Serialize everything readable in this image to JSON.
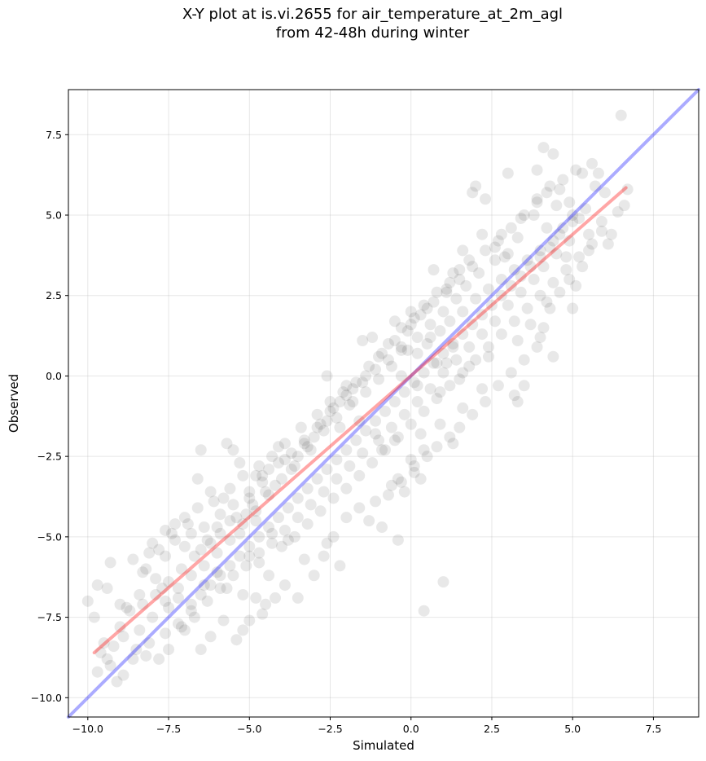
{
  "chart_data": {
    "type": "scatter",
    "title_lines": [
      "X-Y plot at is.vi.2655 for air_temperature_at_2m_agl",
      "from 42-48h during winter"
    ],
    "xlabel": "Simulated",
    "ylabel": "Observed",
    "xlim": [
      -10.6,
      8.9
    ],
    "ylim": [
      -10.6,
      8.9
    ],
    "xticks": [
      -10.0,
      -7.5,
      -5.0,
      -2.5,
      0.0,
      2.5,
      5.0,
      7.5
    ],
    "xtick_labels": [
      "−10.0",
      "−7.5",
      "−5.0",
      "−2.5",
      "0.0",
      "2.5",
      "5.0",
      "7.5"
    ],
    "yticks": [
      -10.0,
      -7.5,
      -5.0,
      -2.5,
      0.0,
      2.5,
      5.0,
      7.5
    ],
    "ytick_labels": [
      "−10.0",
      "−7.5",
      "−5.0",
      "−2.5",
      "0.0",
      "2.5",
      "5.0",
      "7.5"
    ],
    "grid": true,
    "point_color": "#000000",
    "point_alpha": 0.09,
    "identity_line": {
      "x": [
        -10.6,
        8.9
      ],
      "y": [
        -10.6,
        8.9
      ],
      "color": "#0000ff",
      "alpha": 0.33
    },
    "regression_line": {
      "x": [
        -9.8,
        6.65
      ],
      "y": [
        -8.6,
        5.85
      ],
      "color": "#ff0000",
      "alpha": 0.35
    },
    "points": [
      [
        6.5,
        8.1
      ],
      [
        6.6,
        5.3
      ],
      [
        6.7,
        5.8
      ],
      [
        6.1,
        4.1
      ],
      [
        5.9,
        4.5
      ],
      [
        5.8,
        6.3
      ],
      [
        5.6,
        6.6
      ],
      [
        5.3,
        6.3
      ],
      [
        4.1,
        7.1
      ],
      [
        4.4,
        6.9
      ],
      [
        3.9,
        6.4
      ],
      [
        3.0,
        6.3
      ],
      [
        2.0,
        5.9
      ],
      [
        1.9,
        5.7
      ],
      [
        2.3,
        5.5
      ],
      [
        5.1,
        6.4
      ],
      [
        4.2,
        4.6
      ],
      [
        4.5,
        5.3
      ],
      [
        3.8,
        5.0
      ],
      [
        3.3,
        4.3
      ],
      [
        2.9,
        3.7
      ],
      [
        4.8,
        3.7
      ],
      [
        5.1,
        2.8
      ],
      [
        5.0,
        2.1
      ],
      [
        4.2,
        2.3
      ],
      [
        3.7,
        1.6
      ],
      [
        3.3,
        1.1
      ],
      [
        3.5,
        -0.3
      ],
      [
        3.2,
        -0.6
      ],
      [
        3.3,
        -0.8
      ],
      [
        4.4,
        0.6
      ],
      [
        4.0,
        1.2
      ],
      [
        1.6,
        3.9
      ],
      [
        1.3,
        3.2
      ],
      [
        0.7,
        3.3
      ],
      [
        1.1,
        2.6
      ],
      [
        0.5,
        2.1
      ],
      [
        0.0,
        1.6
      ],
      [
        0.1,
        1.8
      ],
      [
        -0.5,
        1.7
      ],
      [
        -1.5,
        1.1
      ],
      [
        -1.2,
        1.2
      ],
      [
        -0.3,
        0.8
      ],
      [
        -0.3,
        0.0
      ],
      [
        0.2,
        -0.3
      ],
      [
        0.8,
        0.4
      ],
      [
        1.3,
        0.9
      ],
      [
        1.1,
        0.4
      ],
      [
        0.6,
        1.2
      ],
      [
        0.9,
        -0.5
      ],
      [
        1.5,
        -0.1
      ],
      [
        1.8,
        0.3
      ],
      [
        2.4,
        0.6
      ],
      [
        2.2,
        -0.4
      ],
      [
        1.6,
        -1.0
      ],
      [
        1.3,
        -2.1
      ],
      [
        0.9,
        -1.5
      ],
      [
        0.3,
        -1.8
      ],
      [
        0.4,
        -2.3
      ],
      [
        0.1,
        -3.0
      ],
      [
        0.0,
        -2.6
      ],
      [
        -0.4,
        -3.2
      ],
      [
        -0.5,
        -2.0
      ],
      [
        -1.1,
        -1.8
      ],
      [
        -0.9,
        -2.3
      ],
      [
        -1.6,
        -1.4
      ],
      [
        -1.8,
        -0.8
      ],
      [
        -2.0,
        -0.3
      ],
      [
        -2.6,
        0.0
      ],
      [
        -2.2,
        -1.6
      ],
      [
        -2.6,
        -1.4
      ],
      [
        -3.0,
        -1.9
      ],
      [
        -3.3,
        -2.0
      ],
      [
        -3.5,
        -2.5
      ],
      [
        -3.9,
        -2.6
      ],
      [
        -4.1,
        -2.2
      ],
      [
        -4.4,
        -2.9
      ],
      [
        -4.6,
        -3.3
      ],
      [
        -4.8,
        -3.1
      ],
      [
        -5.0,
        -3.8
      ],
      [
        -5.3,
        -2.7
      ],
      [
        -5.5,
        -2.3
      ],
      [
        -5.7,
        -2.1
      ],
      [
        -6.5,
        -2.3
      ],
      [
        -6.6,
        -3.2
      ],
      [
        -6.2,
        -3.6
      ],
      [
        -5.8,
        -3.8
      ],
      [
        -5.1,
        -4.3
      ],
      [
        -4.8,
        -4.5
      ],
      [
        -4.3,
        -4.9
      ],
      [
        -3.8,
        -5.1
      ],
      [
        -3.3,
        -5.7
      ],
      [
        -2.6,
        -5.2
      ],
      [
        -2.2,
        -5.9
      ],
      [
        -1.3,
        -4.5
      ],
      [
        -0.9,
        -4.7
      ],
      [
        -0.4,
        -5.1
      ],
      [
        -0.6,
        -3.4
      ],
      [
        -0.2,
        -3.6
      ],
      [
        0.3,
        -3.2
      ],
      [
        1.0,
        -6.4
      ],
      [
        0.4,
        -7.3
      ],
      [
        -3.9,
        -6.5
      ],
      [
        -4.2,
        -6.9
      ],
      [
        -4.6,
        -7.4
      ],
      [
        -5.0,
        -7.6
      ],
      [
        -5.2,
        -7.9
      ],
      [
        -5.4,
        -8.2
      ],
      [
        -5.8,
        -7.6
      ],
      [
        -6.2,
        -8.1
      ],
      [
        -6.5,
        -8.5
      ],
      [
        -7.0,
        -7.9
      ],
      [
        -7.5,
        -8.5
      ],
      [
        -7.8,
        -8.8
      ],
      [
        -8.2,
        -8.7
      ],
      [
        -8.5,
        -8.5
      ],
      [
        -8.9,
        -9.3
      ],
      [
        -9.1,
        -9.5
      ],
      [
        -9.3,
        -9.0
      ],
      [
        -9.6,
        -8.6
      ],
      [
        -9.5,
        -8.3
      ],
      [
        -9.8,
        -7.5
      ],
      [
        -10.0,
        -7.0
      ],
      [
        -9.7,
        -6.5
      ],
      [
        -9.4,
        -6.6
      ],
      [
        -9.3,
        -5.8
      ],
      [
        -8.6,
        -5.7
      ],
      [
        -8.3,
        -6.1
      ],
      [
        -8.0,
        -5.2
      ],
      [
        -7.6,
        -5.6
      ],
      [
        -7.4,
        -4.9
      ],
      [
        -7.0,
        -4.4
      ],
      [
        -7.3,
        -4.6
      ],
      [
        -6.8,
        -4.9
      ],
      [
        -6.5,
        -5.4
      ],
      [
        -6.2,
        -5.2
      ],
      [
        -6.0,
        -4.7
      ],
      [
        -5.6,
        -4.5
      ],
      [
        -5.3,
        -4.9
      ],
      [
        -5.0,
        -5.6
      ],
      [
        -4.7,
        -5.8
      ],
      [
        -4.4,
        -6.2
      ],
      [
        -4.0,
        -5.3
      ],
      [
        -3.6,
        -5.0
      ],
      [
        -3.2,
        -4.6
      ],
      [
        -2.8,
        -4.2
      ],
      [
        -2.4,
        -3.8
      ],
      [
        -2.0,
        -3.5
      ],
      [
        -1.6,
        -3.1
      ],
      [
        -1.2,
        -2.7
      ],
      [
        -0.8,
        -2.3
      ],
      [
        -0.4,
        -1.9
      ],
      [
        0.0,
        -1.5
      ],
      [
        0.4,
        -1.1
      ],
      [
        0.8,
        -0.7
      ],
      [
        1.2,
        -0.3
      ],
      [
        1.6,
        0.1
      ],
      [
        2.0,
        0.5
      ],
      [
        2.4,
        0.9
      ],
      [
        2.8,
        1.3
      ],
      [
        3.2,
        1.7
      ],
      [
        3.6,
        2.1
      ],
      [
        4.0,
        2.5
      ],
      [
        4.4,
        2.9
      ],
      [
        4.8,
        3.3
      ],
      [
        5.2,
        3.7
      ],
      [
        5.6,
        4.1
      ],
      [
        2.8,
        4.4
      ],
      [
        3.4,
        4.9
      ],
      [
        3.9,
        5.4
      ],
      [
        4.3,
        5.9
      ],
      [
        4.7,
        6.1
      ],
      [
        2.6,
        3.6
      ],
      [
        2.1,
        3.2
      ],
      [
        1.7,
        2.8
      ],
      [
        1.4,
        2.4
      ],
      [
        1.0,
        2.0
      ],
      [
        0.6,
        1.6
      ],
      [
        0.2,
        1.2
      ],
      [
        -0.1,
        0.8
      ],
      [
        -0.6,
        0.3
      ],
      [
        -1.0,
        -0.1
      ],
      [
        -1.4,
        -0.5
      ],
      [
        -1.9,
        -0.9
      ],
      [
        -2.3,
        -1.3
      ],
      [
        -2.7,
        -1.7
      ],
      [
        -3.1,
        -2.3
      ],
      [
        -3.6,
        -2.8
      ],
      [
        -4.2,
        -3.4
      ],
      [
        -4.5,
        -3.6
      ],
      [
        -4.9,
        -4.0
      ],
      [
        -5.4,
        -4.4
      ],
      [
        -5.9,
        -4.9
      ],
      [
        -6.3,
        -5.1
      ],
      [
        -6.7,
        -5.6
      ],
      [
        -7.1,
        -6.0
      ],
      [
        -7.5,
        -6.4
      ],
      [
        -7.9,
        -6.8
      ],
      [
        -8.3,
        -7.1
      ],
      [
        -8.7,
        -7.3
      ],
      [
        -9.0,
        -7.8
      ],
      [
        -8.8,
        -7.2
      ],
      [
        -8.4,
        -6.8
      ],
      [
        -7.7,
        -6.6
      ],
      [
        -7.2,
        -6.9
      ],
      [
        -6.8,
        -7.1
      ],
      [
        -6.4,
        -6.5
      ],
      [
        -6.0,
        -6.1
      ],
      [
        -5.7,
        -6.6
      ],
      [
        -5.2,
        -6.8
      ],
      [
        -4.8,
        -6.9
      ],
      [
        -4.5,
        -7.1
      ],
      [
        -3.5,
        -6.9
      ],
      [
        -3.0,
        -6.2
      ],
      [
        -2.7,
        -5.6
      ],
      [
        -2.4,
        -5.0
      ],
      [
        -2.0,
        -4.4
      ],
      [
        -1.6,
        -4.1
      ],
      [
        -1.1,
        -3.9
      ],
      [
        -0.7,
        -3.7
      ],
      [
        -0.3,
        -3.3
      ],
      [
        0.1,
        -2.8
      ],
      [
        0.5,
        -2.5
      ],
      [
        0.8,
        -2.2
      ],
      [
        1.2,
        -1.9
      ],
      [
        1.5,
        -1.6
      ],
      [
        1.9,
        -1.2
      ],
      [
        2.3,
        -0.8
      ],
      [
        2.7,
        -0.3
      ],
      [
        3.1,
        0.1
      ],
      [
        3.5,
        0.5
      ],
      [
        3.9,
        0.9
      ],
      [
        4.1,
        1.5
      ],
      [
        4.3,
        2.1
      ],
      [
        4.6,
        2.6
      ],
      [
        4.9,
        3.0
      ],
      [
        5.3,
        3.4
      ],
      [
        5.5,
        3.9
      ],
      [
        5.9,
        4.8
      ],
      [
        6.2,
        4.4
      ],
      [
        6.4,
        5.1
      ],
      [
        6.0,
        5.7
      ],
      [
        5.7,
        5.9
      ],
      [
        5.4,
        5.2
      ],
      [
        5.0,
        4.8
      ],
      [
        4.6,
        4.4
      ],
      [
        4.3,
        4.0
      ],
      [
        4.0,
        3.7
      ],
      [
        3.7,
        3.4
      ],
      [
        3.4,
        3.1
      ],
      [
        3.1,
        2.8
      ],
      [
        2.8,
        2.5
      ],
      [
        2.5,
        2.2
      ],
      [
        2.2,
        1.9
      ],
      [
        1.9,
        1.6
      ],
      [
        1.6,
        1.3
      ],
      [
        1.3,
        1.0
      ],
      [
        1.0,
        0.7
      ],
      [
        0.7,
        0.4
      ],
      [
        0.4,
        0.1
      ],
      [
        0.1,
        -0.2
      ],
      [
        -0.2,
        -0.5
      ],
      [
        -0.5,
        -0.8
      ],
      [
        -0.8,
        -1.1
      ],
      [
        -1.1,
        -1.4
      ],
      [
        -1.4,
        -1.7
      ],
      [
        -1.7,
        -2.0
      ],
      [
        -2.0,
        -2.3
      ],
      [
        -2.3,
        -2.6
      ],
      [
        -2.6,
        -2.9
      ],
      [
        -2.9,
        -3.2
      ],
      [
        -3.2,
        -3.5
      ],
      [
        -3.5,
        -3.8
      ],
      [
        -3.8,
        -4.1
      ],
      [
        -4.1,
        -4.4
      ],
      [
        -4.4,
        -4.7
      ],
      [
        -4.7,
        -5.0
      ],
      [
        -5.0,
        -5.3
      ],
      [
        -5.3,
        -5.6
      ],
      [
        -5.6,
        -5.9
      ],
      [
        -5.9,
        -6.2
      ],
      [
        -6.2,
        -6.5
      ],
      [
        -6.5,
        -6.8
      ],
      [
        -6.8,
        -7.3
      ],
      [
        -7.2,
        -7.7
      ],
      [
        -7.6,
        -8.0
      ],
      [
        -8.1,
        -8.3
      ],
      [
        -8.6,
        -8.8
      ],
      [
        -9.2,
        -8.4
      ],
      [
        -9.0,
        -7.1
      ],
      [
        -8.2,
        -6.0
      ],
      [
        -7.8,
        -5.4
      ],
      [
        -7.3,
        -5.1
      ],
      [
        -6.9,
        -4.6
      ],
      [
        -6.6,
        -4.1
      ],
      [
        -6.1,
        -3.9
      ],
      [
        -5.6,
        -3.5
      ],
      [
        -5.2,
        -3.1
      ],
      [
        -4.7,
        -2.8
      ],
      [
        -4.3,
        -2.5
      ],
      [
        -3.9,
        -2.1
      ],
      [
        -3.4,
        -1.6
      ],
      [
        -2.9,
        -1.2
      ],
      [
        -2.5,
        -0.8
      ],
      [
        -2.1,
        -0.5
      ],
      [
        -1.7,
        -0.2
      ],
      [
        -1.3,
        0.3
      ],
      [
        -0.9,
        0.7
      ],
      [
        -0.5,
        1.1
      ],
      [
        -0.1,
        1.4
      ],
      [
        0.3,
        1.9
      ],
      [
        0.7,
        2.3
      ],
      [
        1.1,
        2.7
      ],
      [
        1.5,
        3.0
      ],
      [
        1.9,
        3.4
      ],
      [
        2.3,
        3.9
      ],
      [
        2.7,
        4.2
      ],
      [
        3.1,
        4.6
      ],
      [
        3.5,
        5.0
      ],
      [
        3.9,
        5.5
      ],
      [
        4.2,
        5.7
      ],
      [
        4.6,
        5.8
      ],
      [
        4.9,
        5.4
      ],
      [
        5.2,
        4.9
      ],
      [
        5.5,
        4.4
      ],
      [
        4.9,
        4.2
      ],
      [
        4.5,
        3.8
      ],
      [
        4.1,
        3.4
      ],
      [
        3.8,
        3.0
      ],
      [
        3.4,
        2.6
      ],
      [
        3.0,
        2.2
      ],
      [
        2.6,
        1.7
      ],
      [
        2.2,
        1.3
      ],
      [
        1.8,
        0.9
      ],
      [
        1.4,
        0.5
      ],
      [
        1.0,
        0.1
      ],
      [
        0.6,
        -0.4
      ],
      [
        0.2,
        -0.8
      ],
      [
        -0.2,
        -1.2
      ],
      [
        -0.6,
        -1.6
      ],
      [
        -1.0,
        -2.0
      ],
      [
        -1.5,
        -2.4
      ],
      [
        -1.9,
        -2.8
      ],
      [
        -2.3,
        -3.2
      ],
      [
        -2.7,
        -3.6
      ],
      [
        -3.1,
        -4.0
      ],
      [
        -3.5,
        -4.4
      ],
      [
        -3.9,
        -4.8
      ],
      [
        -4.3,
        -5.2
      ],
      [
        -4.7,
        -5.5
      ],
      [
        -5.1,
        -5.9
      ],
      [
        -5.5,
        -6.2
      ],
      [
        -5.9,
        -6.6
      ],
      [
        -6.3,
        -7.0
      ],
      [
        -6.7,
        -7.5
      ],
      [
        -7.1,
        -7.8
      ],
      [
        -7.5,
        -7.2
      ],
      [
        -7.9,
        -6.3
      ],
      [
        -8.1,
        -5.5
      ],
      [
        -7.6,
        -4.8
      ],
      [
        -7.0,
        -5.3
      ],
      [
        -6.4,
        -4.7
      ],
      [
        -5.9,
        -4.3
      ],
      [
        -5.5,
        -4.0
      ],
      [
        -5.0,
        -3.6
      ],
      [
        -4.6,
        -3.1
      ],
      [
        -4.1,
        -2.7
      ],
      [
        -3.7,
        -2.4
      ],
      [
        -3.2,
        -2.2
      ],
      [
        -2.8,
        -1.5
      ],
      [
        -2.4,
        -1.0
      ],
      [
        -2.0,
        -0.6
      ],
      [
        -1.5,
        -0.2
      ],
      [
        -1.1,
        0.2
      ],
      [
        -0.7,
        0.5
      ],
      [
        -0.3,
        0.9
      ],
      [
        0.2,
        0.7
      ],
      [
        0.5,
        1.0
      ],
      [
        0.9,
        1.4
      ],
      [
        1.2,
        1.7
      ],
      [
        1.6,
        2.0
      ],
      [
        2.0,
        2.4
      ],
      [
        2.4,
        2.7
      ],
      [
        2.8,
        3.0
      ],
      [
        3.2,
        3.3
      ],
      [
        3.6,
        3.6
      ],
      [
        4.0,
        3.9
      ],
      [
        4.4,
        4.2
      ],
      [
        4.7,
        4.6
      ],
      [
        5.0,
        5.0
      ],
      [
        3.0,
        3.8
      ],
      [
        2.6,
        4.0
      ],
      [
        2.2,
        4.4
      ],
      [
        1.8,
        3.6
      ],
      [
        1.5,
        3.3
      ],
      [
        1.2,
        2.9
      ],
      [
        0.8,
        2.6
      ],
      [
        0.4,
        2.2
      ],
      [
        0.0,
        2.0
      ],
      [
        -0.3,
        1.5
      ],
      [
        -0.7,
        1.0
      ],
      [
        -1.0,
        0.6
      ],
      [
        -1.4,
        0.0
      ],
      [
        -1.8,
        -0.4
      ],
      [
        -2.2,
        -0.8
      ],
      [
        -2.5,
        -1.1
      ],
      [
        -2.9,
        -1.6
      ],
      [
        -3.3,
        -2.1
      ],
      [
        -3.7,
        -2.9
      ],
      [
        -4.0,
        -3.2
      ],
      [
        -4.4,
        -3.7
      ],
      [
        -4.8,
        -4.2
      ],
      [
        -5.2,
        -4.6
      ],
      [
        -5.6,
        -5.1
      ],
      [
        -6.0,
        -5.5
      ],
      [
        -6.4,
        -5.9
      ],
      [
        -6.8,
        -6.2
      ],
      [
        -7.2,
        -6.6
      ],
      [
        -7.6,
        -7.0
      ],
      [
        -8.0,
        -7.5
      ],
      [
        -8.4,
        -7.9
      ],
      [
        -8.9,
        -8.1
      ],
      [
        -9.4,
        -8.8
      ],
      [
        -9.7,
        -9.2
      ]
    ]
  }
}
